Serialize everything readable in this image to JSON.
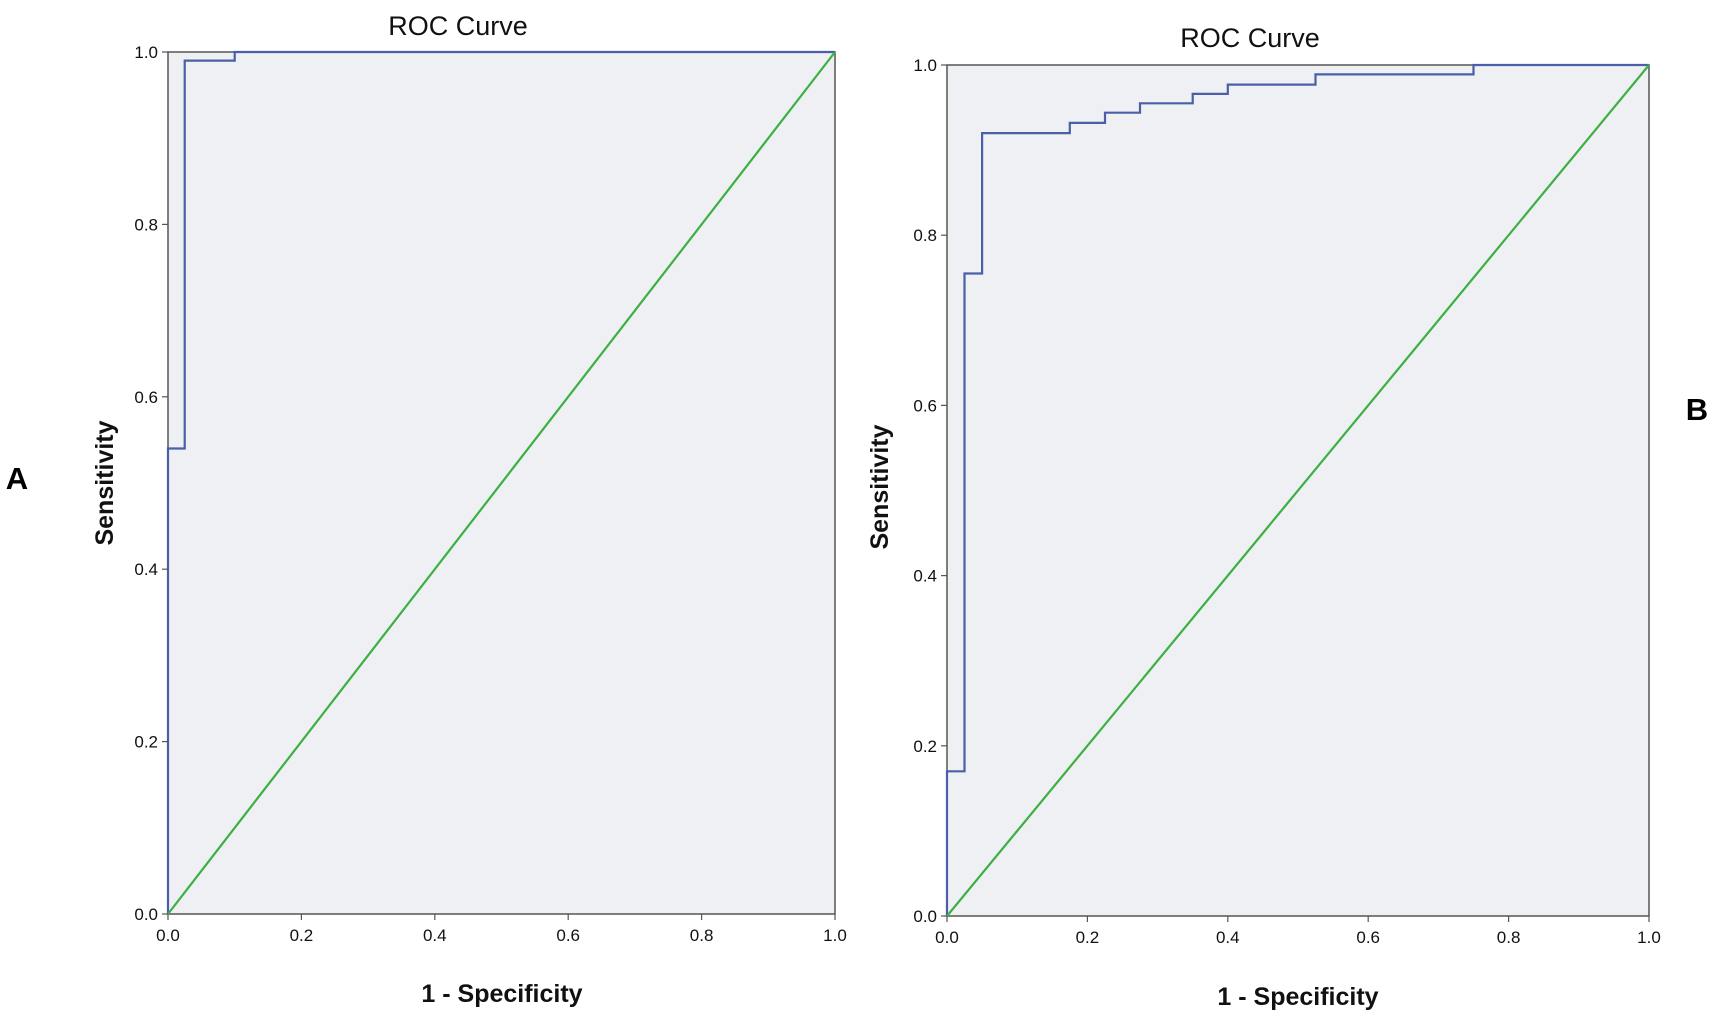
{
  "colors": {
    "plot_background": "#eef0f3",
    "roc_curve": "#4a5fa8",
    "reference_line": "#3cb043",
    "frame": "#555555"
  },
  "panel_letters": [
    "A",
    "B"
  ],
  "chart_data": [
    {
      "type": "line",
      "title": "ROC Curve",
      "xlabel": "1 - Specificity",
      "ylabel": "Sensitivity",
      "xlim": [
        0,
        1
      ],
      "ylim": [
        0,
        1
      ],
      "xticks": [
        "0.0",
        "0.2",
        "0.4",
        "0.6",
        "0.8",
        "1.0"
      ],
      "yticks": [
        "0.0",
        "0.2",
        "0.4",
        "0.6",
        "0.8",
        "1.0"
      ],
      "grid": false,
      "series": [
        {
          "color": "#4a5fa8",
          "x": [
            0,
            0,
            0.025,
            0.025,
            0.1,
            0.1,
            1.0
          ],
          "y": [
            0,
            0.54,
            0.54,
            0.99,
            0.99,
            1.0,
            1.0
          ]
        },
        {
          "color": "#3cb043",
          "x": [
            0,
            1
          ],
          "y": [
            0,
            1
          ]
        }
      ]
    },
    {
      "type": "line",
      "title": "ROC Curve",
      "xlabel": "1 - Specificity",
      "ylabel": "Sensitivity",
      "xlim": [
        0,
        1
      ],
      "ylim": [
        0,
        1
      ],
      "xticks": [
        "0.0",
        "0.2",
        "0.4",
        "0.6",
        "0.8",
        "1.0"
      ],
      "yticks": [
        "0.0",
        "0.2",
        "0.4",
        "0.6",
        "0.8",
        "1.0"
      ],
      "grid": false,
      "series": [
        {
          "color": "#4a5fa8",
          "x": [
            0,
            0,
            0.025,
            0.025,
            0.05,
            0.05,
            0.175,
            0.175,
            0.225,
            0.225,
            0.275,
            0.275,
            0.35,
            0.35,
            0.4,
            0.4,
            0.525,
            0.525,
            0.75,
            0.75,
            1.0
          ],
          "y": [
            0,
            0.17,
            0.17,
            0.755,
            0.755,
            0.92,
            0.92,
            0.932,
            0.932,
            0.944,
            0.944,
            0.955,
            0.955,
            0.966,
            0.966,
            0.977,
            0.977,
            0.989,
            0.989,
            1.0,
            1.0
          ]
        },
        {
          "color": "#3cb043",
          "x": [
            0,
            1
          ],
          "y": [
            0,
            1
          ]
        }
      ]
    }
  ]
}
